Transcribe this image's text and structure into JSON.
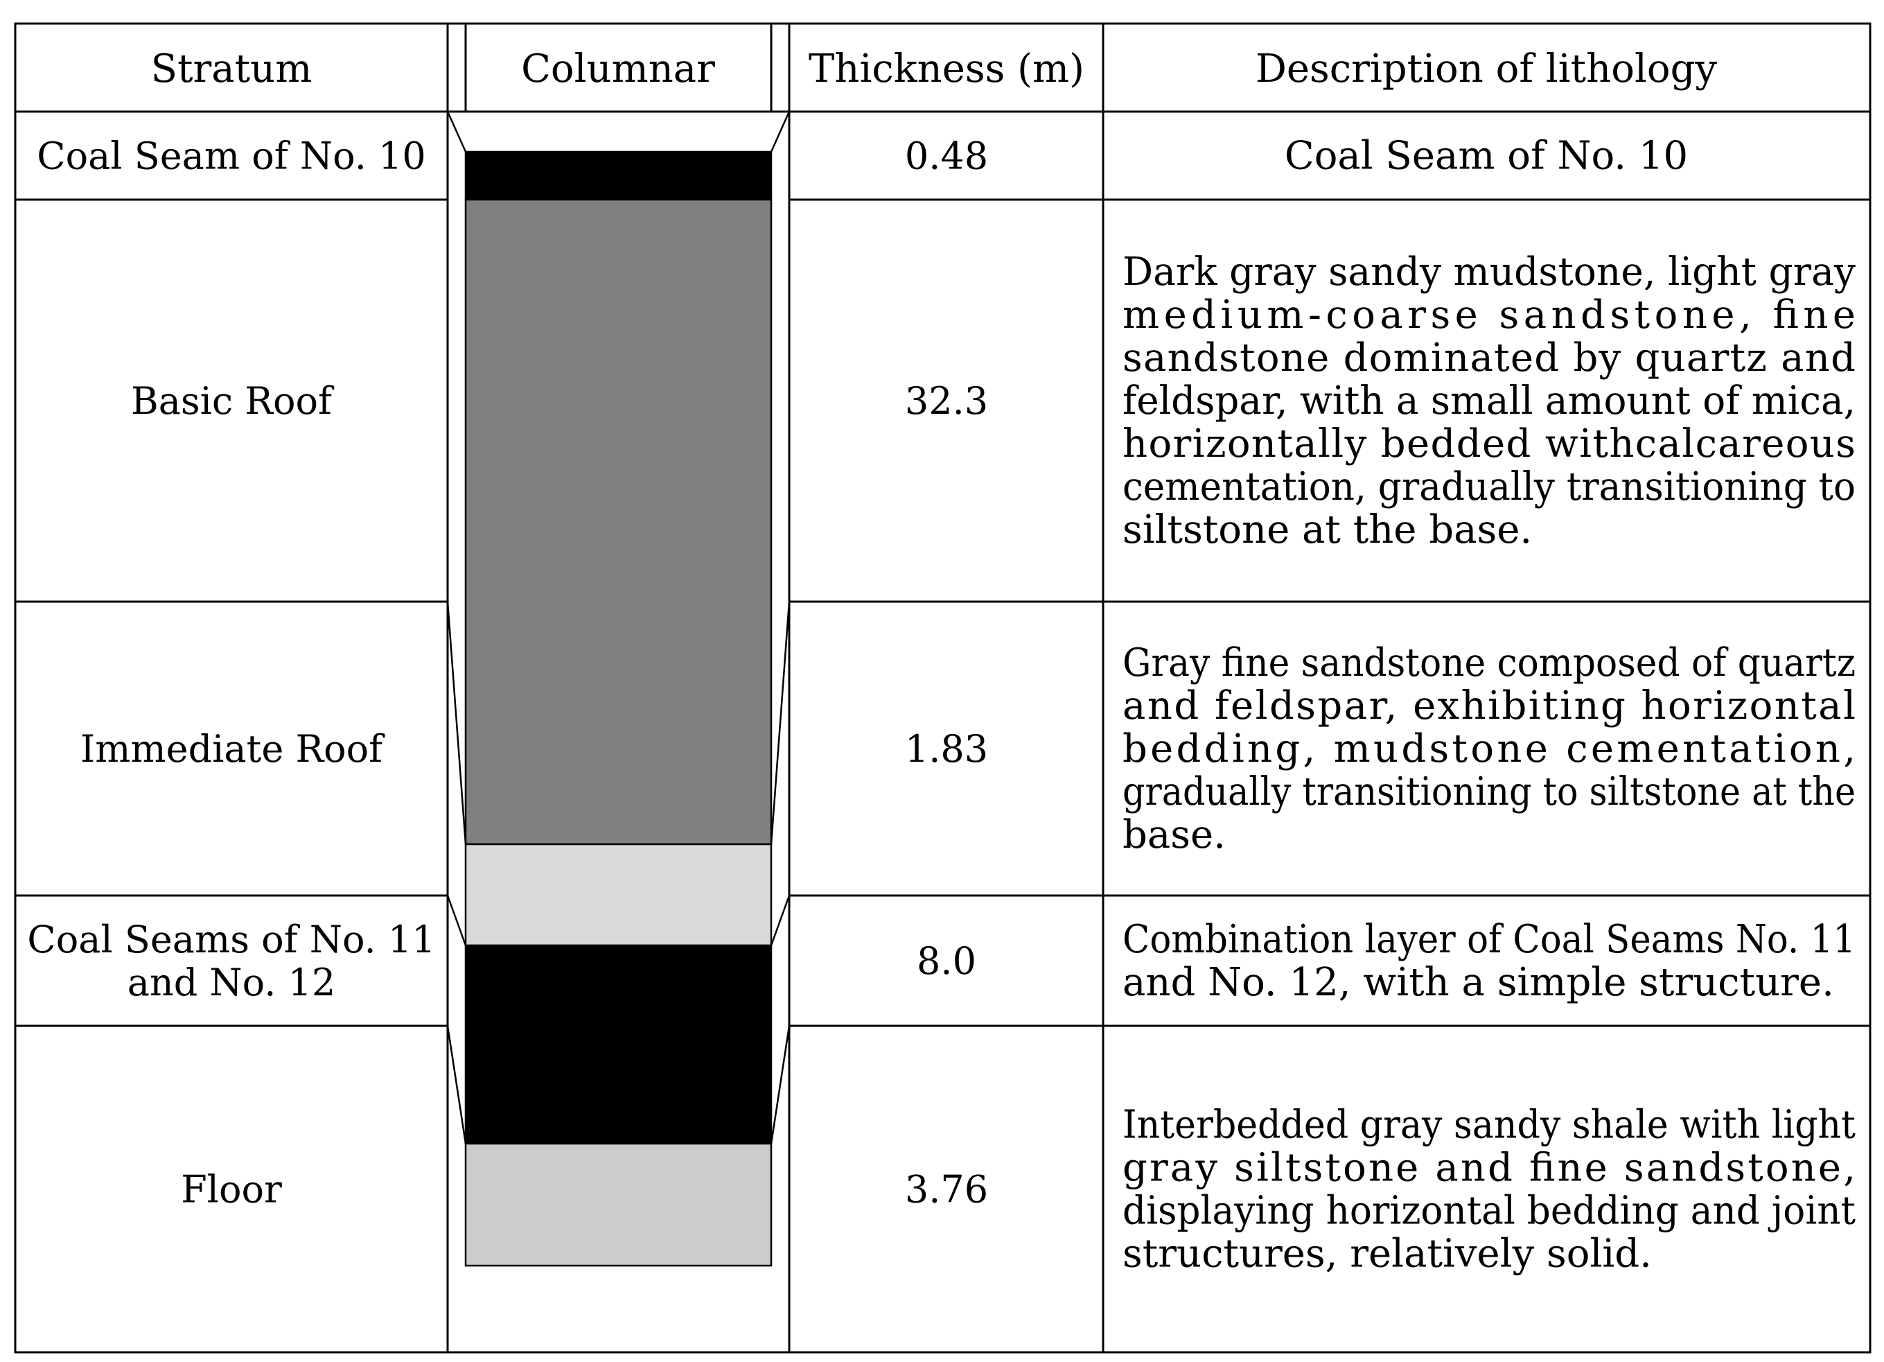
{
  "headers": {
    "stratum": "Stratum",
    "columnar": "Columnar",
    "thickness": "Thickness (m)",
    "description": "Description of lithology"
  },
  "rows": [
    {
      "stratum": [
        "Coal Seam of No. 10"
      ],
      "thickness": "0.48",
      "description": [
        "Coal Seam of No. 10"
      ]
    },
    {
      "stratum": [
        "Basic Roof"
      ],
      "thickness": "32.3",
      "description": [
        "Dark gray sandy mudstone, light gray",
        "medium-coarse sandstone, fine",
        "sandstone dominated by quartz and",
        "feldspar, with a small amount of mica,",
        "horizontally bedded withcalcareous",
        "cementation, gradually transitioning to",
        "siltstone at the base."
      ]
    },
    {
      "stratum": [
        "Immediate Roof"
      ],
      "thickness": "1.83",
      "description": [
        "Gray fine sandstone composed of quartz",
        "and feldspar, exhibiting horizontal",
        "bedding, mudstone cementation,",
        "gradually transitioning to siltstone at the",
        "base."
      ]
    },
    {
      "stratum": [
        "Coal Seams of No. 11",
        "and No. 12"
      ],
      "thickness": "8.0",
      "description": [
        "Combination layer of Coal Seams No. 11",
        "and No. 12, with a simple structure."
      ]
    },
    {
      "stratum": [
        "Floor"
      ],
      "thickness": "3.76",
      "description": [
        "Interbedded gray sandy shale with light",
        "gray siltstone and fine sandstone,",
        "displaying horizontal bedding and joint",
        "structures, relatively solid."
      ]
    }
  ],
  "column_colors": {
    "coal": "#000000",
    "sandstone_dark": "#808080",
    "fine_sandstone": "#d9d9d9",
    "floor": "#cccccc"
  }
}
